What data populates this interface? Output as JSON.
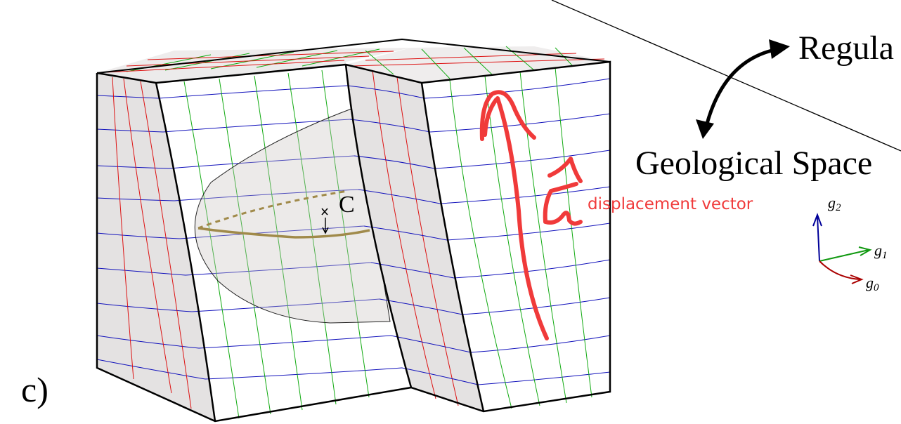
{
  "labels": {
    "panel": "c)",
    "top_space": "Regula",
    "bottom_space": "Geological Space",
    "point": "C",
    "annotation": "displacement vector"
  },
  "axes": {
    "g0": {
      "letter": "g",
      "sub": "0",
      "color": "#aa0000"
    },
    "g1": {
      "letter": "g",
      "sub": "1",
      "color": "#119911"
    },
    "g2": {
      "letter": "g",
      "sub": "2",
      "color": "#000099"
    }
  },
  "colors": {
    "grid_red": "#dd1111",
    "grid_green": "#11aa11",
    "grid_blue": "#1111bb",
    "fault_curve": "#a08a4a",
    "annotation": "#f03a3a",
    "face_shade": "#e6e3e3",
    "face_light": "#ffffff"
  }
}
